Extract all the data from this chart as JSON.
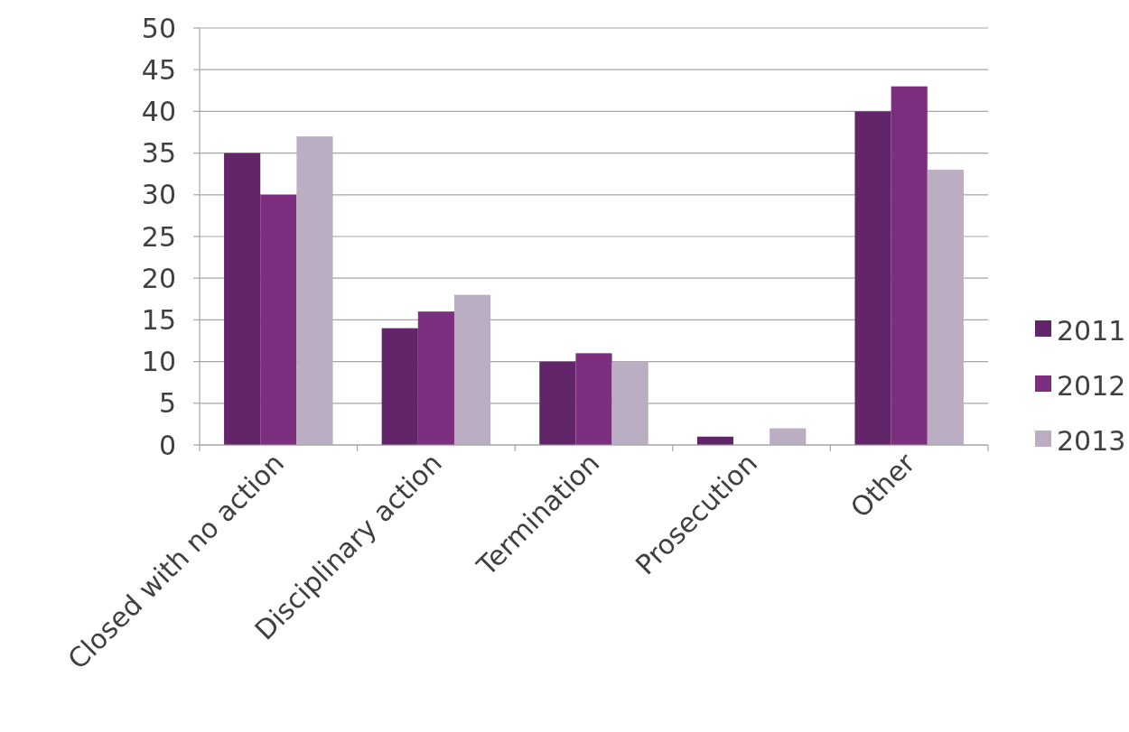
{
  "chart_data": {
    "type": "bar",
    "categories": [
      "Closed with no action",
      "Disciplinary action",
      "Termination",
      "Prosecution",
      "Other"
    ],
    "series": [
      {
        "name": "2011",
        "color": "#62256a",
        "values": [
          35,
          14,
          10,
          1,
          40
        ]
      },
      {
        "name": "2012",
        "color": "#7b2f7e",
        "values": [
          30,
          16,
          11,
          0,
          43
        ]
      },
      {
        "name": "2013",
        "color": "#bbaec2",
        "values": [
          37,
          18,
          10,
          2,
          33
        ]
      }
    ],
    "ylim": [
      0,
      50
    ],
    "yticks": [
      0,
      5,
      10,
      15,
      20,
      25,
      30,
      35,
      40,
      45,
      50
    ],
    "grid": "y",
    "legend": "right"
  }
}
